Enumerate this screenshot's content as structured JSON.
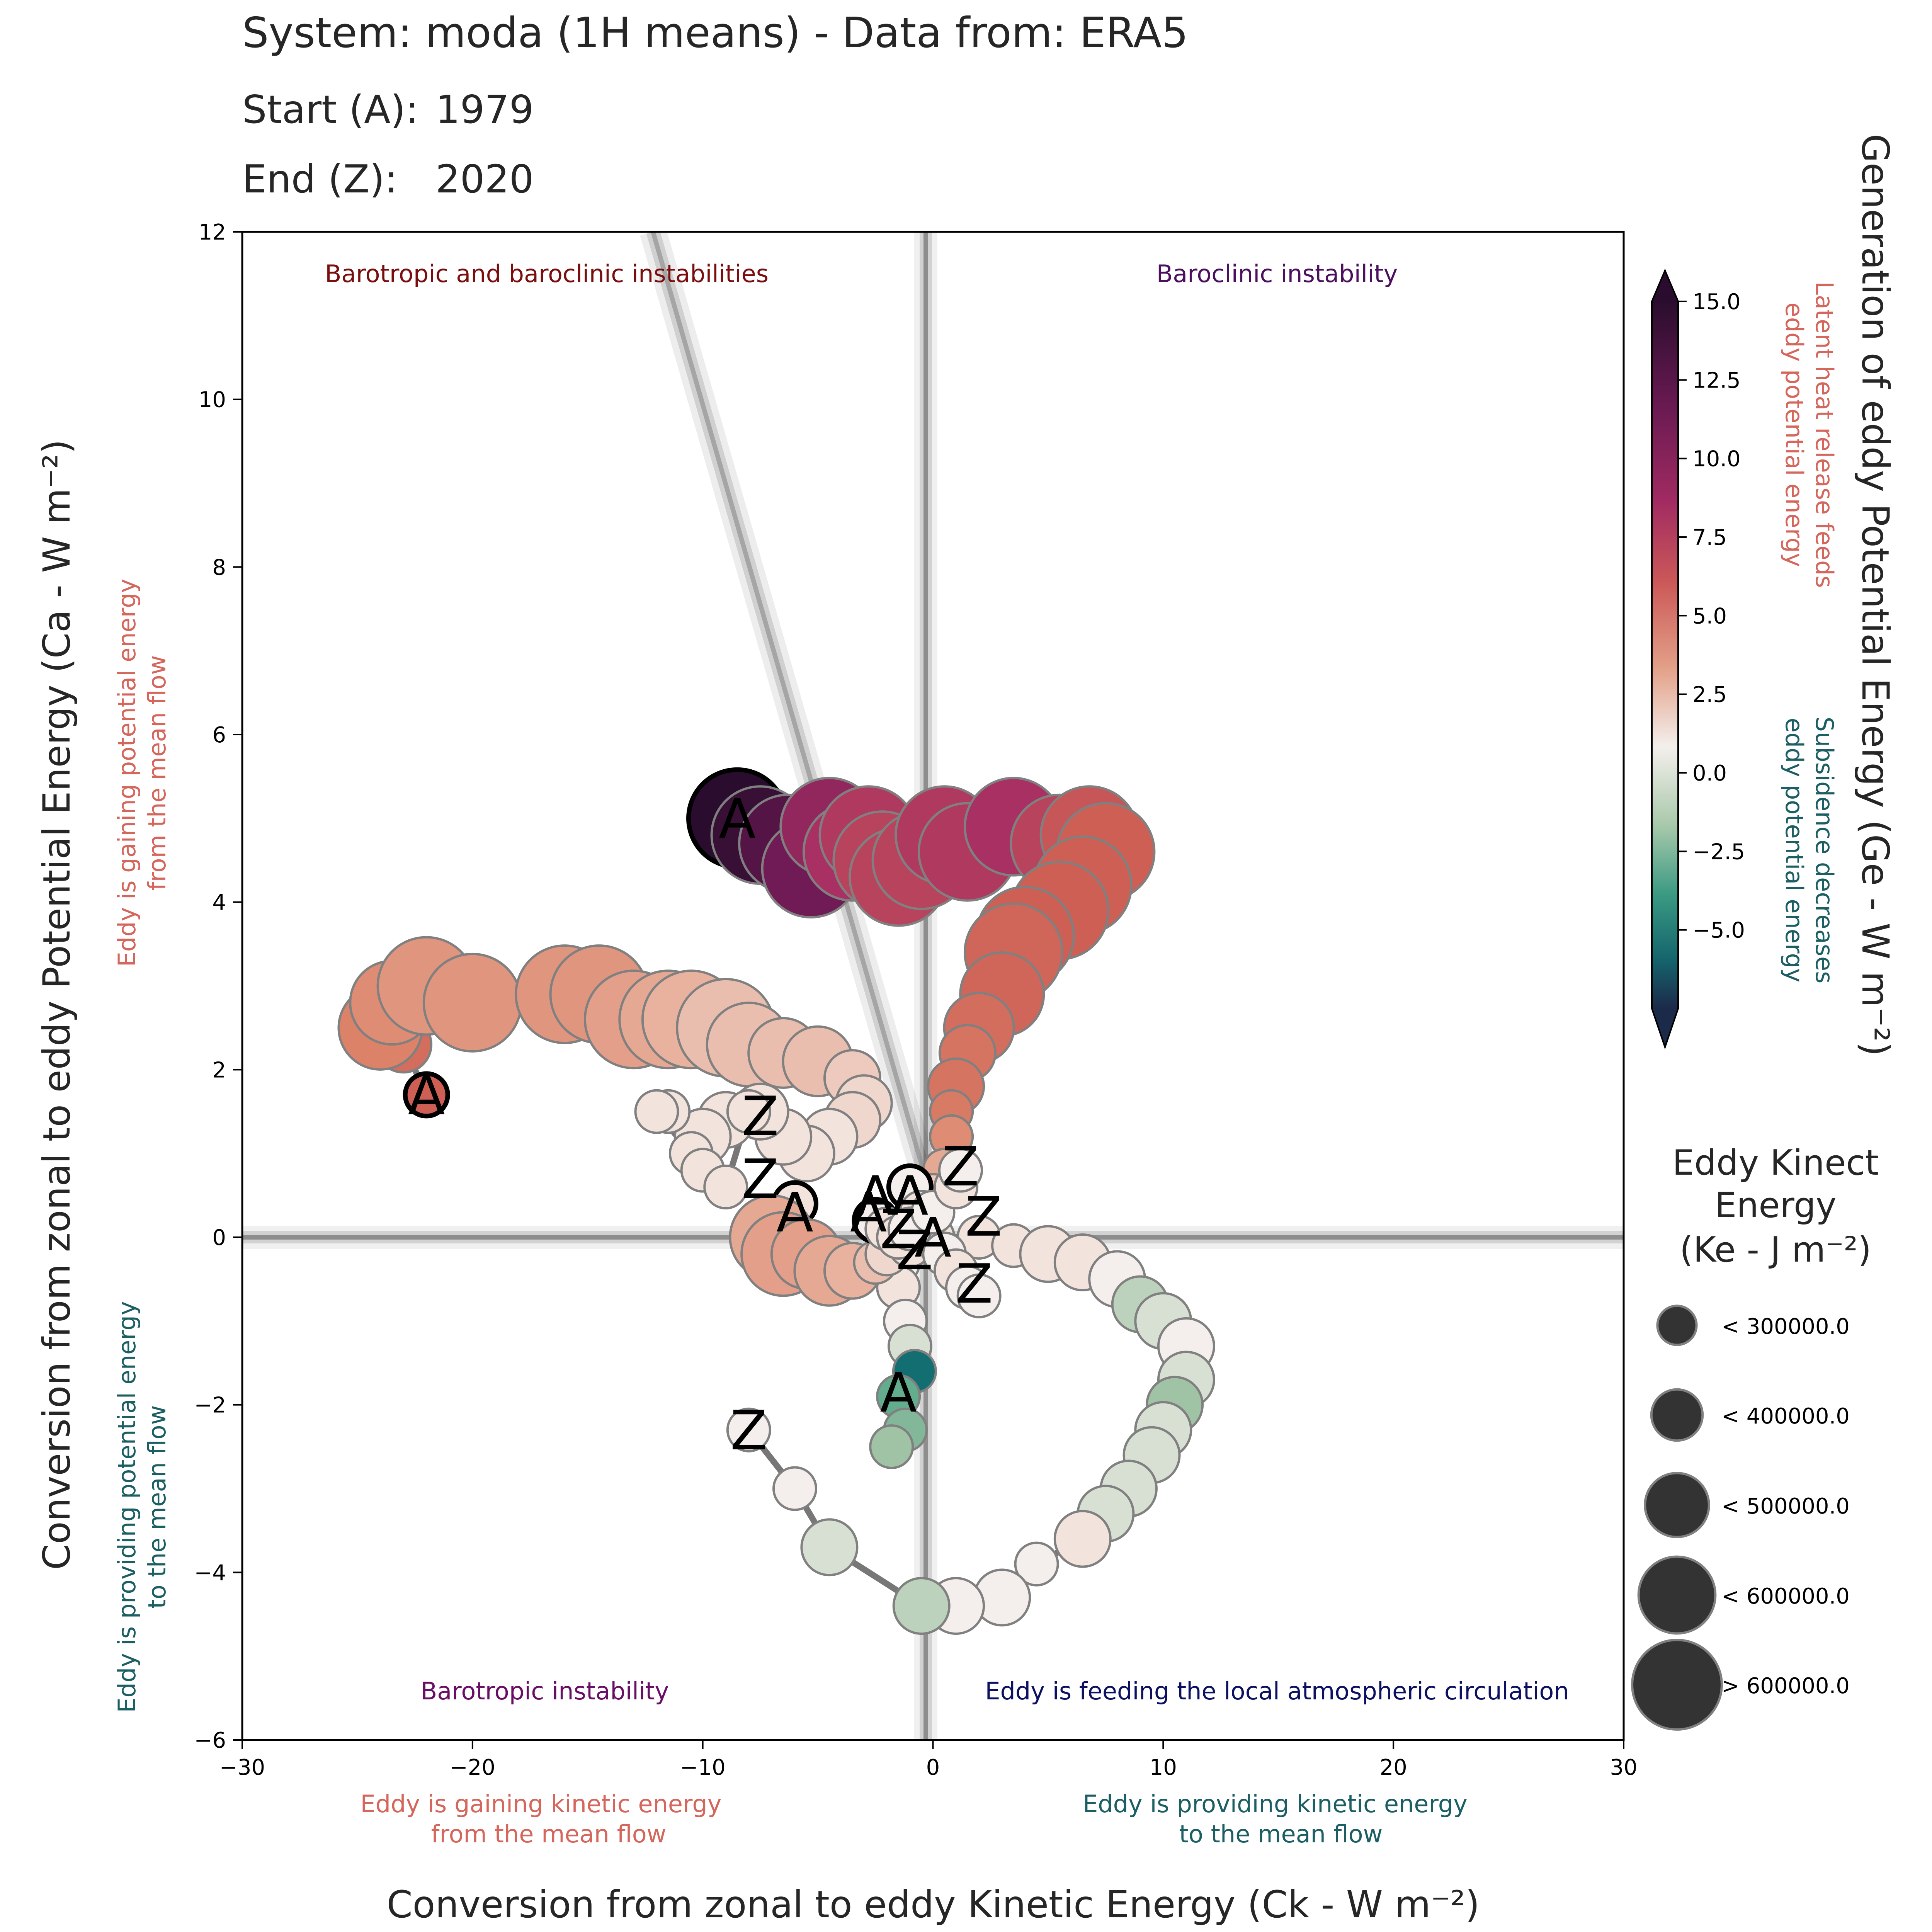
{
  "header": {
    "line1": "System: moda (1H means) - Data from: ERA5",
    "start_label": "Start (A):",
    "start_value": "1979",
    "end_label": "End (Z):",
    "end_value": "2020"
  },
  "chart_data": {
    "type": "scatter",
    "xlabel": "Conversion from zonal to eddy Kinetic Energy (Ck -  W m⁻²)",
    "ylabel": "Conversion from zonal to eddy Potential Energy (Ca -  W m⁻²)",
    "xlim": [
      -30,
      30
    ],
    "ylim": [
      -6,
      12
    ],
    "x_ticks": [
      -30,
      -20,
      -10,
      0,
      10,
      20,
      30
    ],
    "x_tick_labels": [
      "−30",
      "−20",
      "−10",
      "0",
      "10",
      "20",
      "30"
    ],
    "y_ticks": [
      -6,
      -4,
      -2,
      0,
      2,
      4,
      6,
      8,
      10,
      12
    ],
    "y_tick_labels": [
      "−6",
      "−4",
      "−2",
      "0",
      "2",
      "4",
      "6",
      "8",
      "10",
      "12"
    ],
    "grid": false,
    "quadrant_labels": {
      "top_left": "Barotropic and baroclinic instabilities",
      "top_right": "Baroclinic instability",
      "bottom_left": "Barotropic instability",
      "bottom_right": "Eddy is feeding the local atmospheric circulation"
    },
    "axis_annotations": {
      "x_negative": "Eddy is gaining kinetic energy\nfrom the mean flow",
      "x_positive": "Eddy is providing kinetic energy\nto the mean flow",
      "y_positive": "Eddy is gaining potential energy\nfrom the mean flow",
      "y_negative": "Eddy is providing potential energy\nto the mean flow"
    },
    "colorbar": {
      "label": "Generation of eddy Potential Energy (Ge -  W m⁻²)",
      "range": [
        -7.5,
        15
      ],
      "ticks": [
        15.0,
        12.5,
        10.0,
        7.5,
        5.0,
        2.5,
        0.0,
        -2.5,
        -5.0
      ],
      "tick_labels": [
        "15.0",
        "12.5",
        "10.0",
        "7.5",
        "5.0",
        "2.5",
        "0.0",
        "−2.5",
        "−5.0"
      ],
      "positive_note": "Latent heat release feeds\neddy potential energy",
      "negative_note": "Subsidence decreases\neddy potential energy",
      "colors": {
        "neg_end": "#1c2a4a",
        "neg_mid": "#127a74",
        "neg_low": "#8fb79a",
        "zero": "#f4efec",
        "pos_low": "#e8b29e",
        "pos_mid": "#d06455",
        "pos_high": "#8c1f5c",
        "pos_end": "#2a0d2e"
      }
    },
    "size_legend": {
      "title": "Eddy Kinect\nEnergy\n(Ke -  J m⁻²)",
      "entries": [
        "< 300000.0",
        "< 400000.0",
        "< 500000.0",
        "< 600000.0",
        "> 600000.0"
      ]
    },
    "series": [
      {
        "start": "A",
        "end": "Z",
        "points": [
          [
            -8.5,
            5.0,
            15.0,
            5
          ],
          [
            -7.5,
            4.8,
            14.5,
            5
          ],
          [
            -6.3,
            4.7,
            13.5,
            5
          ],
          [
            -5.3,
            4.4,
            12.5,
            5
          ],
          [
            -4.5,
            4.9,
            11.0,
            5
          ],
          [
            -3.5,
            4.6,
            10.0,
            5
          ],
          [
            -2.8,
            4.8,
            9.5,
            5
          ],
          [
            -2.2,
            4.5,
            9.0,
            5
          ],
          [
            -1.5,
            4.3,
            9.0,
            5
          ],
          [
            -0.5,
            4.5,
            9.0,
            5
          ],
          [
            0.5,
            4.8,
            9.5,
            5
          ],
          [
            1.5,
            4.6,
            9.5,
            5
          ],
          [
            3.5,
            4.9,
            10.0,
            5
          ],
          [
            5.5,
            4.7,
            9.0,
            5
          ],
          [
            6.8,
            4.8,
            8.0,
            5
          ],
          [
            7.5,
            4.6,
            7.5,
            5
          ],
          [
            6.5,
            4.2,
            7.5,
            5
          ],
          [
            5.5,
            3.9,
            7.5,
            5
          ],
          [
            4.0,
            3.6,
            7.5,
            5
          ],
          [
            3.5,
            3.4,
            7.0,
            5
          ],
          [
            3.0,
            2.9,
            7.0,
            4
          ],
          [
            2.0,
            2.5,
            6.5,
            3
          ],
          [
            1.5,
            2.2,
            6.0,
            2
          ],
          [
            1.0,
            1.8,
            6.0,
            2
          ],
          [
            0.8,
            1.5,
            5.5,
            1
          ],
          [
            0.8,
            1.2,
            4.5,
            1
          ],
          [
            0.5,
            0.8,
            3.0,
            1
          ],
          [
            0.0,
            0.5,
            1.5,
            1
          ],
          [
            -0.5,
            0.2,
            0.5,
            1
          ],
          [
            -1.0,
            0.0,
            0.5,
            1
          ],
          [
            -1.5,
            -0.3,
            0.0,
            1
          ],
          [
            -1.5,
            -0.6,
            0.5,
            1
          ],
          [
            -1.2,
            -1.0,
            0.0,
            1
          ],
          [
            -1.0,
            -1.3,
            -0.5,
            1
          ],
          [
            -0.8,
            -1.6,
            -5.0,
            1
          ],
          [
            -1.5,
            -1.9,
            -2.5,
            1
          ],
          [
            -1.2,
            -2.3,
            -2.0,
            1
          ],
          [
            -1.8,
            -2.5,
            -1.5,
            1
          ]
        ]
      },
      {
        "start": "A",
        "end": "Z",
        "points": [
          [
            -22.0,
            1.7,
            7.5,
            1
          ],
          [
            -23.0,
            2.3,
            6.5,
            2
          ],
          [
            -24.0,
            2.5,
            5.0,
            4
          ],
          [
            -23.5,
            2.8,
            4.5,
            4
          ],
          [
            -22.0,
            3.0,
            4.0,
            5
          ],
          [
            -20.0,
            2.8,
            4.0,
            5
          ],
          [
            -16.0,
            2.9,
            4.0,
            5
          ],
          [
            -14.5,
            2.9,
            4.0,
            5
          ],
          [
            -13.0,
            2.6,
            3.5,
            5
          ],
          [
            -11.5,
            2.6,
            3.0,
            5
          ],
          [
            -10.5,
            2.6,
            2.5,
            5
          ],
          [
            -9.0,
            2.5,
            2.0,
            5
          ],
          [
            -8.0,
            2.3,
            2.0,
            4
          ],
          [
            -6.5,
            2.2,
            2.0,
            3
          ],
          [
            -5.0,
            2.1,
            2.0,
            3
          ],
          [
            -3.5,
            1.9,
            1.5,
            2
          ],
          [
            -3.0,
            1.6,
            1.0,
            2
          ],
          [
            -3.5,
            1.4,
            1.0,
            2
          ],
          [
            -4.5,
            1.2,
            0.5,
            2
          ],
          [
            -5.5,
            1.0,
            0.5,
            2
          ],
          [
            -6.5,
            1.2,
            0.5,
            2
          ],
          [
            -7.5,
            1.5,
            0.5,
            2
          ],
          [
            -9.0,
            1.4,
            0.5,
            2
          ],
          [
            -10.0,
            1.2,
            0.5,
            2
          ],
          [
            -11.5,
            1.5,
            0.5,
            1
          ],
          [
            -12.0,
            1.5,
            0.5,
            1
          ],
          [
            -10.5,
            1.0,
            0.5,
            1
          ],
          [
            -10.0,
            0.8,
            0.5,
            1
          ],
          [
            -9.0,
            0.6,
            0.5,
            1
          ],
          [
            -8.0,
            1.5,
            0.5,
            1
          ]
        ]
      },
      {
        "start": "A",
        "end": "Z",
        "points": [
          [
            -6.0,
            0.4,
            0.5,
            1
          ],
          [
            -7.0,
            0.0,
            3.0,
            4
          ],
          [
            -6.5,
            -0.2,
            3.5,
            4
          ],
          [
            -5.5,
            -0.2,
            3.5,
            3
          ],
          [
            -4.5,
            -0.4,
            3.0,
            3
          ],
          [
            -3.5,
            -0.4,
            2.5,
            2
          ],
          [
            -2.5,
            -0.3,
            2.0,
            1
          ],
          [
            -2.0,
            -0.2,
            1.0,
            1
          ],
          [
            -1.0,
            -0.1,
            0.5,
            1
          ],
          [
            0.0,
            0.0,
            0.5,
            1
          ],
          [
            2.0,
            0.0,
            0.5,
            1
          ],
          [
            3.5,
            -0.1,
            0.5,
            1
          ],
          [
            5.0,
            -0.2,
            0.5,
            2
          ],
          [
            6.5,
            -0.3,
            0.5,
            2
          ],
          [
            8.0,
            -0.5,
            0.0,
            2
          ],
          [
            9.0,
            -0.8,
            -1.0,
            2
          ],
          [
            10.0,
            -1.0,
            -0.5,
            2
          ],
          [
            11.0,
            -1.3,
            0.0,
            2
          ],
          [
            11.0,
            -1.7,
            -0.5,
            2
          ],
          [
            10.5,
            -2.0,
            -1.5,
            2
          ],
          [
            10.0,
            -2.3,
            -0.5,
            2
          ],
          [
            9.5,
            -2.6,
            -0.5,
            2
          ],
          [
            8.5,
            -3.0,
            -0.5,
            2
          ],
          [
            7.5,
            -3.3,
            -0.5,
            2
          ],
          [
            6.5,
            -3.6,
            0.5,
            2
          ],
          [
            4.5,
            -3.9,
            0.0,
            1
          ],
          [
            3.0,
            -4.3,
            0.0,
            2
          ],
          [
            1.0,
            -4.4,
            0.0,
            2
          ],
          [
            -0.5,
            -4.4,
            -1.0,
            2
          ],
          [
            -4.5,
            -3.7,
            -0.5,
            2
          ],
          [
            -6.0,
            -3.0,
            0.0,
            1
          ],
          [
            -8.0,
            -2.3,
            0.0,
            1
          ]
        ]
      },
      {
        "start": "A",
        "end": "Z",
        "points": [
          [
            -1.0,
            0.6,
            0.0,
            1
          ],
          [
            -0.5,
            0.3,
            0.5,
            1
          ],
          [
            0.0,
            0.0,
            0.5,
            1
          ],
          [
            0.5,
            -0.2,
            0.0,
            1
          ],
          [
            1.0,
            -0.4,
            0.5,
            1
          ],
          [
            1.5,
            -0.6,
            0.0,
            1
          ],
          [
            2.0,
            -0.7,
            0.0,
            1
          ]
        ]
      },
      {
        "start": "A",
        "end": "Z",
        "points": [
          [
            -2.5,
            0.2,
            0.0,
            1
          ],
          [
            -2.0,
            0.1,
            0.5,
            1
          ],
          [
            -1.5,
            0.0,
            0.5,
            1
          ],
          [
            -1.0,
            0.1,
            0.0,
            1
          ],
          [
            0.0,
            0.3,
            0.0,
            1
          ],
          [
            1.0,
            0.6,
            0.5,
            1
          ],
          [
            1.2,
            0.8,
            0.0,
            1
          ]
        ]
      }
    ],
    "marker_labels": [
      {
        "text": "A",
        "x": -8.5,
        "y": 5.0
      },
      {
        "text": "A",
        "x": -22.0,
        "y": 1.7
      },
      {
        "text": "A",
        "x": -6.0,
        "y": 0.3
      },
      {
        "text": "A",
        "x": -1.5,
        "y": -1.85
      },
      {
        "text": "A",
        "x": -2.5,
        "y": 0.5
      },
      {
        "text": "A",
        "x": -1.0,
        "y": 0.5
      },
      {
        "text": "A",
        "x": -2.8,
        "y": 0.3
      },
      {
        "text": "A",
        "x": 0.0,
        "y": 0.0
      },
      {
        "text": "Z",
        "x": -7.5,
        "y": 1.45
      },
      {
        "text": "Z",
        "x": -7.5,
        "y": 0.7
      },
      {
        "text": "Z",
        "x": 1.2,
        "y": 0.85
      },
      {
        "text": "Z",
        "x": 2.2,
        "y": 0.25
      },
      {
        "text": "Z",
        "x": 1.8,
        "y": -0.55
      },
      {
        "text": "Z",
        "x": -8.0,
        "y": -2.3
      },
      {
        "text": "Z",
        "x": -1.5,
        "y": 0.1
      },
      {
        "text": "Z",
        "x": -0.8,
        "y": -0.15
      }
    ]
  }
}
